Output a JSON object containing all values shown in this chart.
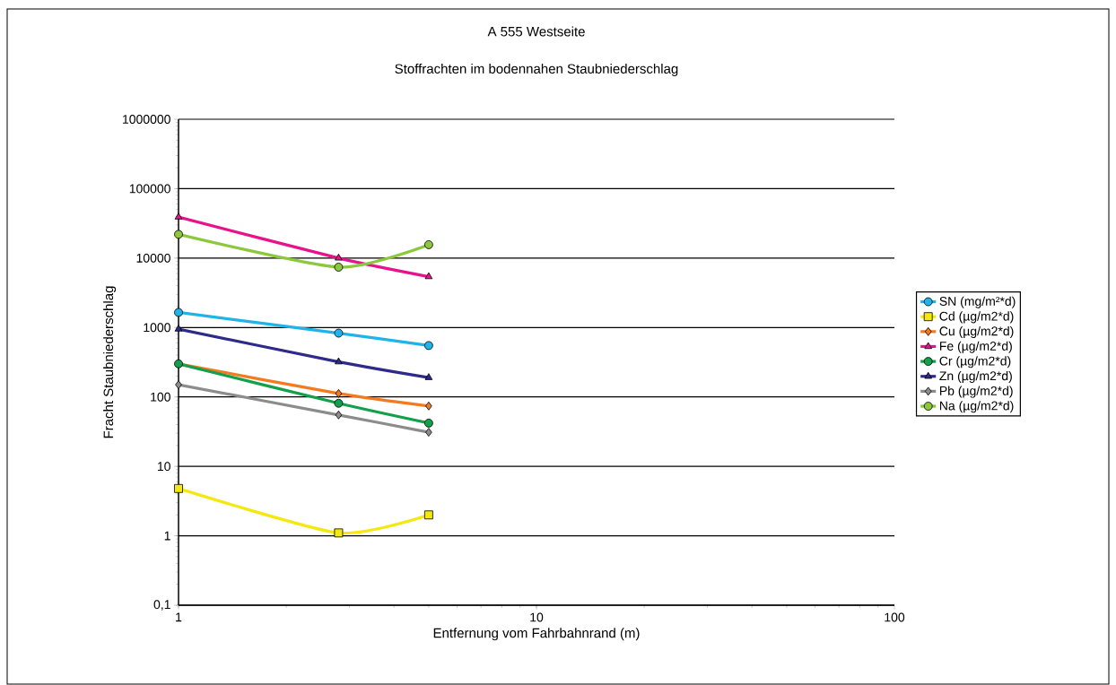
{
  "chart_data": {
    "type": "line",
    "title": "A 555 Westseite",
    "subtitle": "Stoffrachten im bodennahen Staubniederschlag",
    "xlabel": "Entfernung vom Fahrbahnrand (m)",
    "ylabel": "Fracht Staubniederschlag",
    "x": [
      1,
      2.8,
      5
    ],
    "series": [
      {
        "name": "SN (mg/m²*d)",
        "color": "#1fb4e8",
        "marker": "circle",
        "values": [
          1650,
          830,
          550
        ]
      },
      {
        "name": "Cd (µg/m2*d)",
        "color": "#f4e80c",
        "marker": "square",
        "values": [
          4.8,
          1.1,
          2.0
        ]
      },
      {
        "name": "Cu (µg/m2*d)",
        "color": "#f47a20",
        "marker": "diamond",
        "values": [
          300,
          112,
          74
        ]
      },
      {
        "name": "Fe (µg/m2*d)",
        "color": "#e8128a",
        "marker": "triangle",
        "values": [
          39000,
          10000,
          5400
        ]
      },
      {
        "name": "Cr (µg/m2*d)",
        "color": "#12a04a",
        "marker": "circle",
        "values": [
          300,
          81,
          42
        ]
      },
      {
        "name": "Zn (µg/m2*d)",
        "color": "#2e2a8c",
        "marker": "triangle",
        "values": [
          950,
          320,
          190
        ]
      },
      {
        "name": "Pb (µg/m2*d)",
        "color": "#8c8c8c",
        "marker": "diamond",
        "values": [
          150,
          55,
          31
        ]
      },
      {
        "name": "Na (µg/m2*d)",
        "color": "#8cc83c",
        "marker": "circle",
        "values": [
          22000,
          7400,
          15600
        ]
      }
    ],
    "log": "xy",
    "xlim": [
      1,
      100
    ],
    "xticks": [
      1,
      10,
      100
    ],
    "ylim": [
      0.1,
      1000000
    ],
    "yticks": [
      {
        "value": 0.1,
        "label": "0,1"
      },
      1,
      10,
      100,
      1000,
      10000,
      100000,
      1000000
    ],
    "grid": "y",
    "legend": "right",
    "line_style": "solid"
  }
}
